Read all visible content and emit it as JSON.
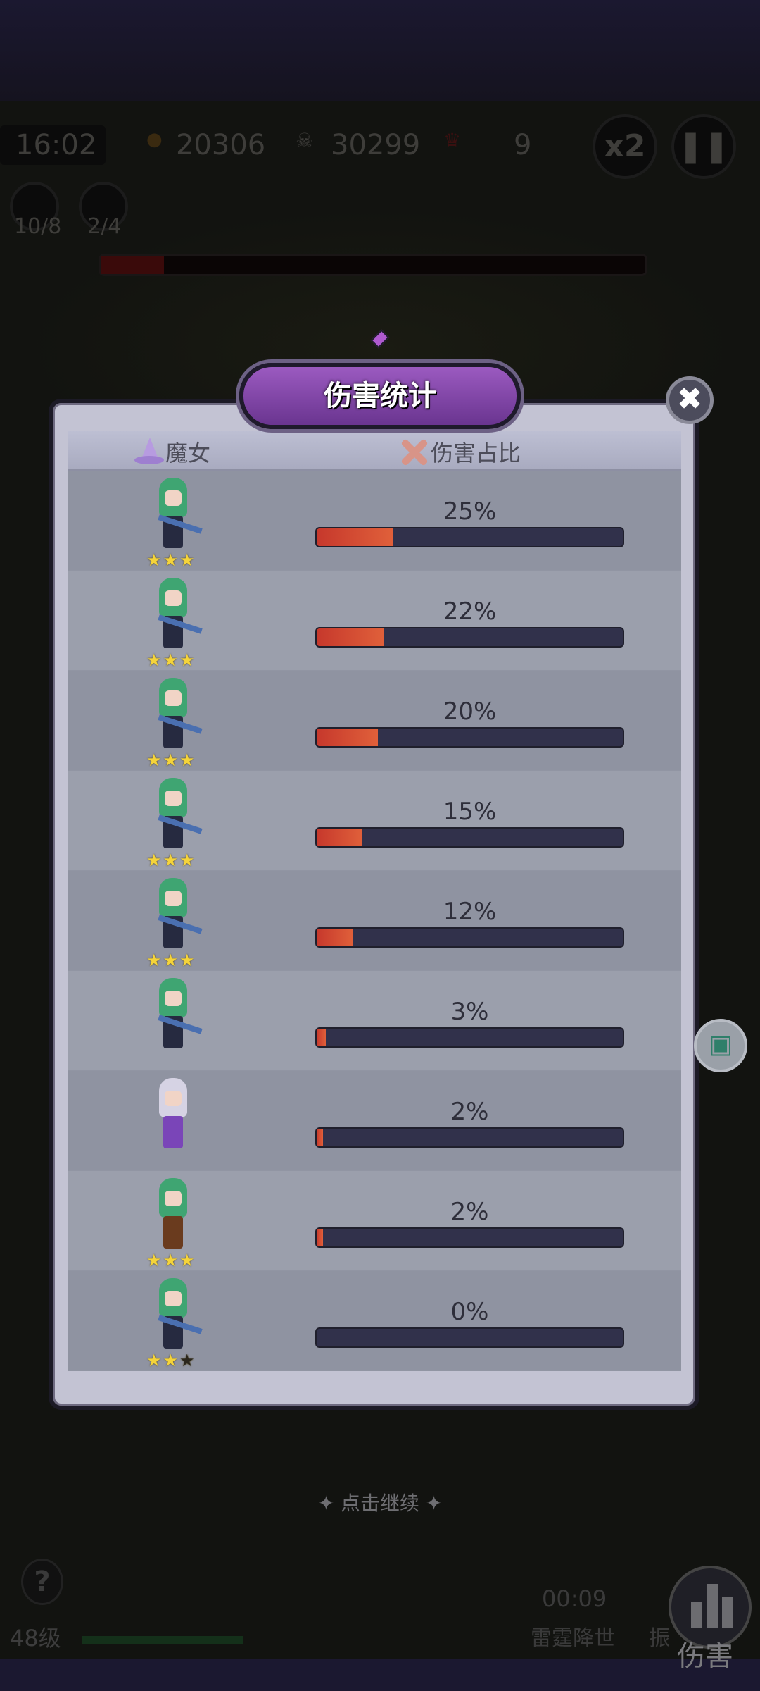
{
  "hud": {
    "time": "16:02",
    "coins": "20306",
    "kills": "30299",
    "boss_count": "9",
    "speed_label": "x2",
    "weapon1_count": "10/8",
    "weapon2_count": "2/4"
  },
  "dialog": {
    "title": "伤害统计",
    "close_icon": "close-x-icon",
    "col_witch": "魔女",
    "col_damage": "伤害占比",
    "rows": [
      {
        "character": "green-fox-girl-sniper",
        "percent": 25,
        "label": "25%",
        "stars": 3,
        "max_stars": 3
      },
      {
        "character": "green-ponytail-girl-blue-gun",
        "percent": 22,
        "label": "22%",
        "stars": 3,
        "max_stars": 3
      },
      {
        "character": "green-ponytail-girl-blue-gun",
        "percent": 20,
        "label": "20%",
        "stars": 3,
        "max_stars": 3
      },
      {
        "character": "green-fox-girl-sniper",
        "percent": 15,
        "label": "15%",
        "stars": 3,
        "max_stars": 3
      },
      {
        "character": "green-ponytail-girl-blue-gun",
        "percent": 12,
        "label": "12%",
        "stars": 3,
        "max_stars": 3
      },
      {
        "character": "green-ponytail-girl-rifle",
        "percent": 3,
        "label": "3%",
        "stars": 0,
        "max_stars": 0
      },
      {
        "character": "silver-hair-moon-witch",
        "percent": 2,
        "label": "2%",
        "stars": 0,
        "max_stars": 0
      },
      {
        "character": "brown-hat-girl",
        "percent": 2,
        "label": "2%",
        "stars": 3,
        "max_stars": 3
      },
      {
        "character": "green-ponytail-girl-rifle",
        "percent": 0,
        "label": "0%",
        "stars": 2,
        "max_stars": 3
      }
    ]
  },
  "bottom": {
    "tap_continue": "✦ 点击继续 ✦",
    "level": "48级",
    "skill_timer": "00:09",
    "skill1": "雷霆降世",
    "skill2": "振",
    "damage_button": "伤害",
    "help": "?"
  },
  "colors": {
    "bar_fill": "#d04a30",
    "bar_track": "#31314b",
    "banner": "#8a4cb4"
  }
}
